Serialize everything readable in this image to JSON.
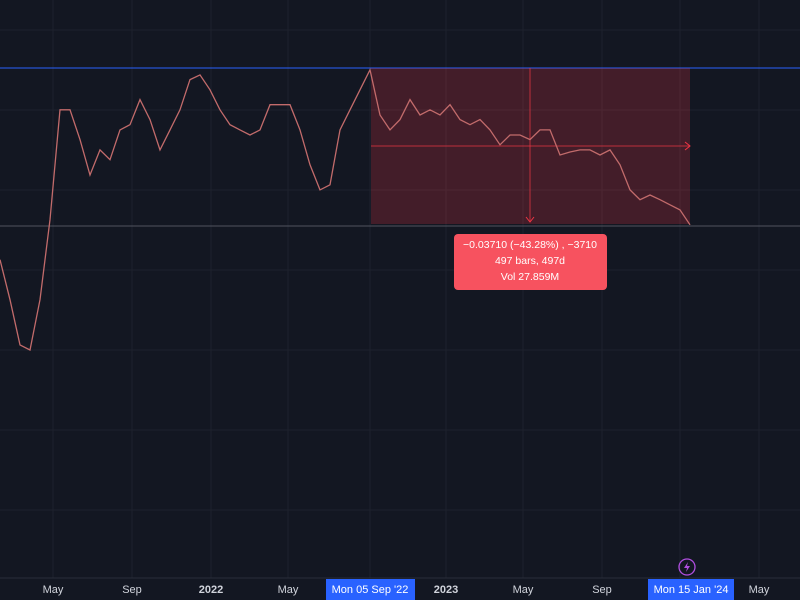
{
  "chart_data": {
    "type": "line",
    "series": [
      {
        "color": "#c26b6b",
        "values": [
          0.0407,
          0.0313,
          0.0207,
          0.0195,
          0.0313,
          0.0501,
          0.0759,
          0.0759,
          0.0689,
          0.0606,
          0.0665,
          0.0642,
          0.0712,
          0.0724,
          0.0783,
          0.0736,
          0.0665,
          0.0712,
          0.0759,
          0.083,
          0.0841,
          0.0806,
          0.0759,
          0.0724,
          0.0712,
          0.07,
          0.0712,
          0.0771,
          0.0771,
          0.0771,
          0.0712,
          0.063,
          0.0571,
          0.0583,
          0.0712,
          0.0759,
          0.0806,
          0.0853,
          0.0747,
          0.0712,
          0.0736,
          0.0783,
          0.0747,
          0.0759,
          0.0747,
          0.0771,
          0.0736,
          0.0724,
          0.0736,
          0.0712,
          0.0677,
          0.07,
          0.07,
          0.0689,
          0.0712,
          0.0712,
          0.0653,
          0.066,
          0.0665,
          0.0665,
          0.0653,
          0.0665,
          0.063,
          0.0571,
          0.0548,
          0.0559,
          0.0548,
          0.0536,
          0.0524,
          0.0489
        ]
      }
    ],
    "ylim": [
      0,
      0.1017
    ]
  },
  "x_axis": {
    "labels": [
      "May",
      "Sep",
      "2022",
      "May",
      "2023",
      "May",
      "Sep",
      "May"
    ]
  },
  "crosshair_dates": [
    "Mon 05 Sep '22",
    "Mon 15 Jan '24"
  ],
  "measure": {
    "lines": [
      "−0.03710 (−43.28%) , −3710",
      "497 bars, 497d",
      "Vol 27.859M"
    ]
  }
}
